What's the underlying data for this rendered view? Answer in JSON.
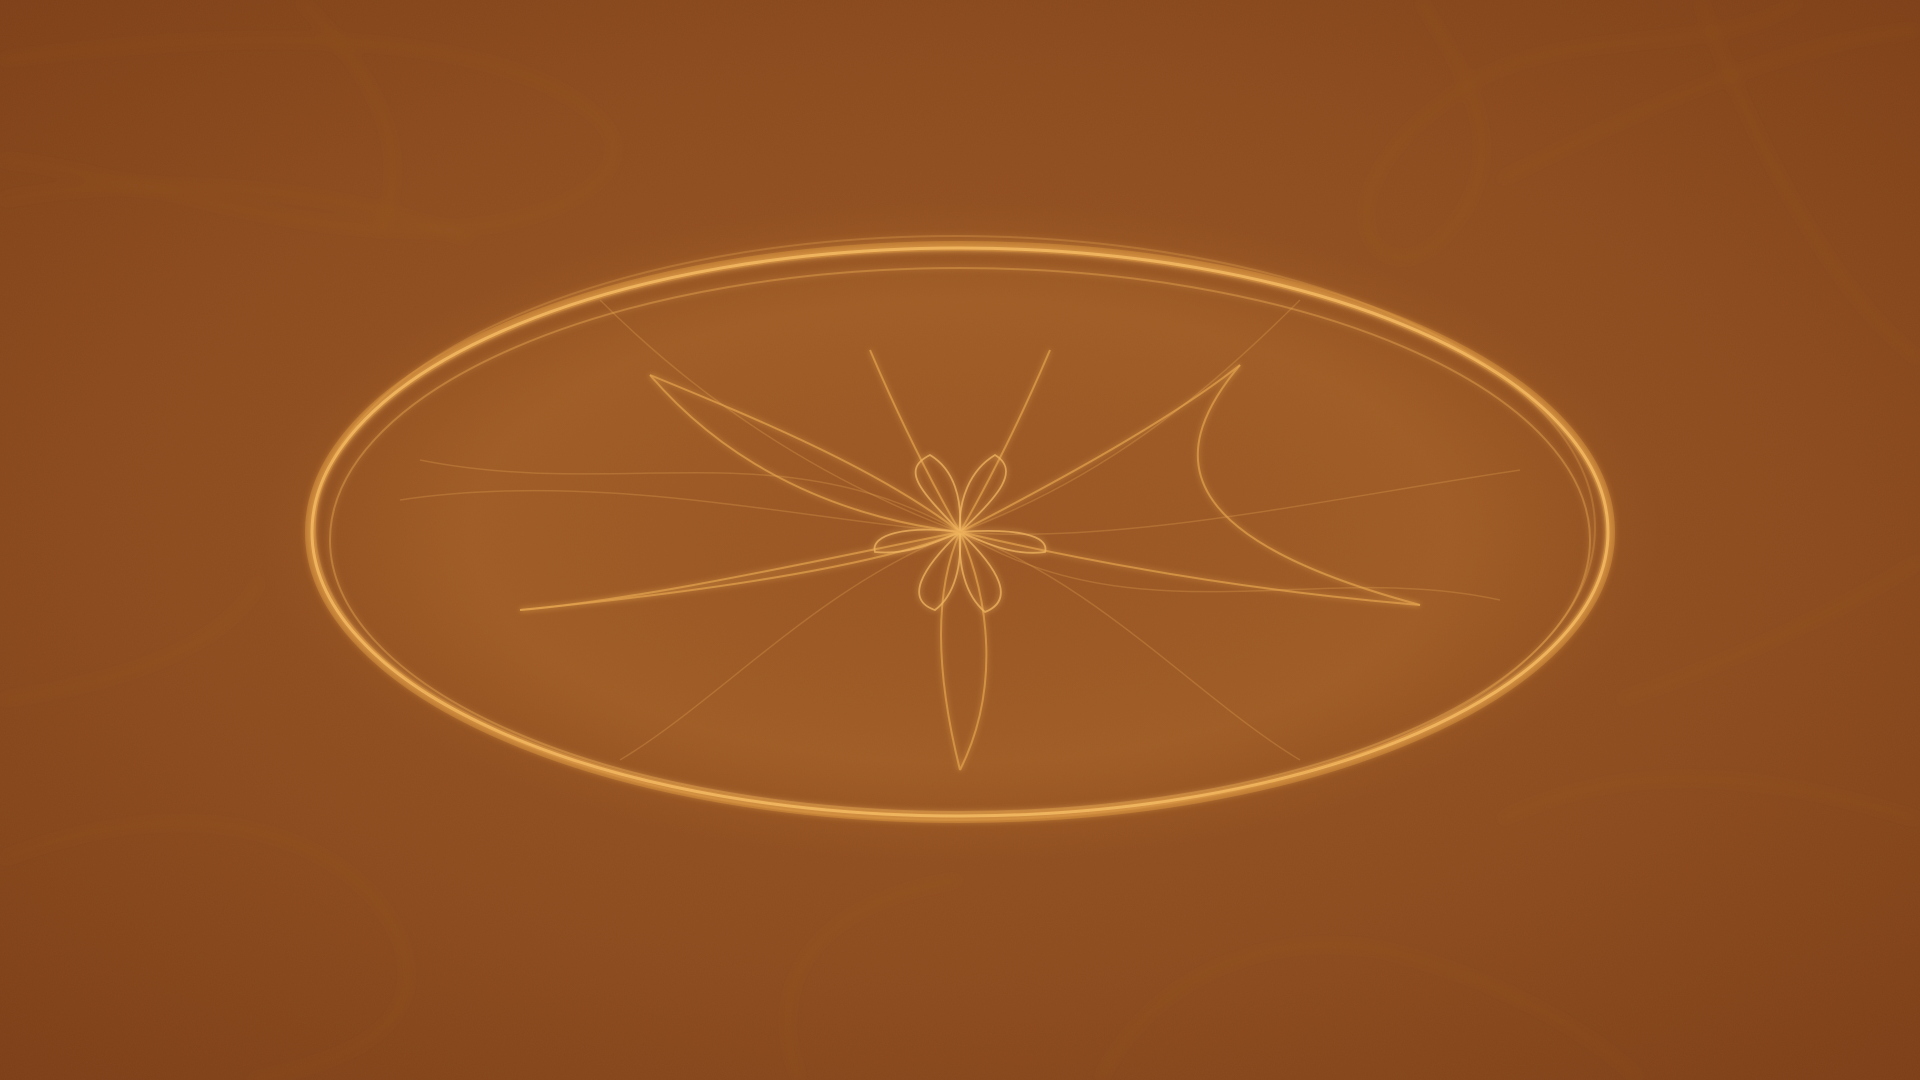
{
  "wallpaper": {
    "subject": "abstract-fractal-flame",
    "colors": {
      "background_dark": "#7a3d17",
      "background_mid": "#8f4e20",
      "glow": "#d08c3a",
      "line_bright": "#f2b860",
      "line_soft": "#c78a45"
    }
  }
}
